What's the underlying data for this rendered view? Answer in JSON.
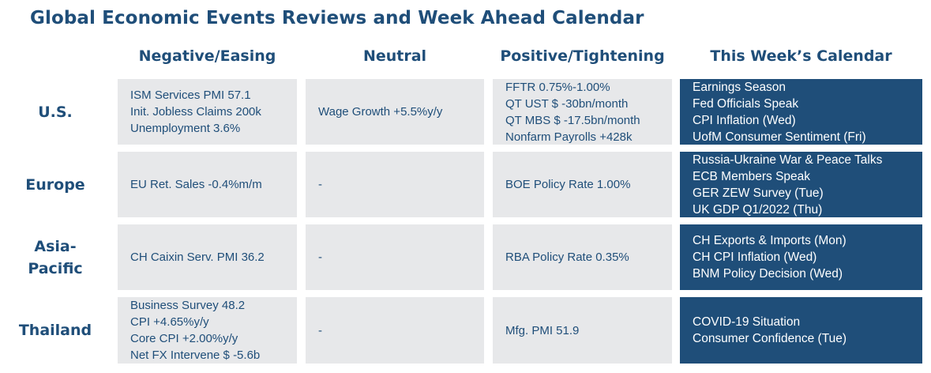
{
  "title": "Global Economic Events Reviews and Week Ahead Calendar",
  "columns": {
    "negative": "Negative/Easing",
    "neutral": "Neutral",
    "positive": "Positive/Tightening",
    "calendar": "This Week’s Calendar"
  },
  "rows": [
    {
      "region": "U.S.",
      "negative": [
        "ISM Services PMI 57.1",
        "Init. Jobless Claims 200k",
        "Unemployment 3.6%"
      ],
      "neutral": [
        "Wage Growth +5.5%y/y"
      ],
      "positive": [
        "FFTR 0.75%-1.00%",
        "QT UST $ -30bn/month",
        "QT MBS $ -17.5bn/month",
        "Nonfarm Payrolls +428k"
      ],
      "calendar": [
        "Earnings Season",
        "Fed Officials Speak",
        "CPI Inflation (Wed)",
        "UofM Consumer Sentiment (Fri)"
      ]
    },
    {
      "region": "Europe",
      "negative": [
        "EU Ret. Sales -0.4%m/m"
      ],
      "neutral": [
        "-"
      ],
      "positive": [
        "BOE Policy Rate 1.00%"
      ],
      "calendar": [
        "Russia-Ukraine War & Peace Talks",
        "ECB Members Speak",
        "GER ZEW Survey (Tue)",
        "UK GDP Q1/2022 (Thu)"
      ]
    },
    {
      "region": "Asia-\nPacific",
      "negative": [
        "CH Caixin Serv. PMI 36.2"
      ],
      "neutral": [
        "-"
      ],
      "positive": [
        "RBA Policy Rate 0.35%"
      ],
      "calendar": [
        "CH Exports & Imports (Mon)",
        "CH CPI Inflation (Wed)",
        "BNM Policy Decision (Wed)"
      ]
    },
    {
      "region": "Thailand",
      "negative": [
        "Business Survey 48.2",
        "CPI +4.65%y/y",
        "Core CPI +2.00%y/y",
        "Net FX Intervene $ -5.6b"
      ],
      "neutral": [
        "-"
      ],
      "positive": [
        "Mfg. PMI 51.9"
      ],
      "calendar": [
        "COVID-19 Situation",
        "Consumer Confidence (Tue)"
      ]
    }
  ]
}
